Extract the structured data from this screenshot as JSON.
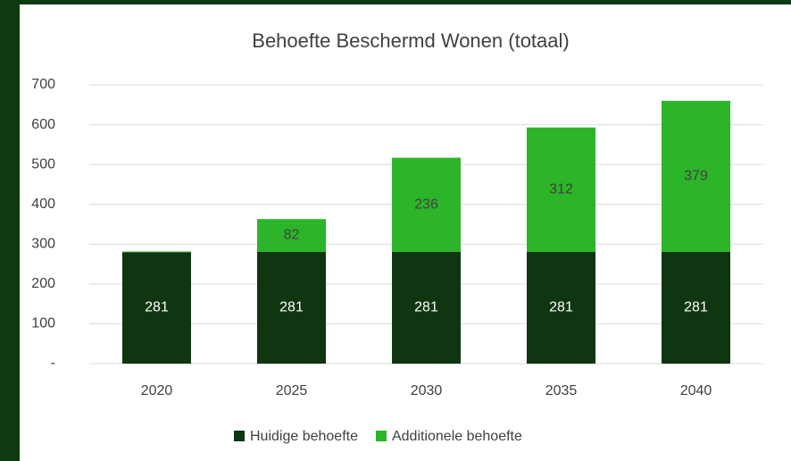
{
  "chart_data": {
    "type": "stacked-bar",
    "title": "Behoefte Beschermd Wonen (totaal)",
    "categories": [
      "2020",
      "2025",
      "2030",
      "2035",
      "2040"
    ],
    "series": [
      {
        "name": "Huidige behoefte",
        "color": "#0f3610",
        "values": [
          281,
          281,
          281,
          281,
          281
        ]
      },
      {
        "name": "Additionele behoefte",
        "color": "#2db52a",
        "values": [
          0,
          82,
          236,
          312,
          379
        ]
      }
    ],
    "ylim": [
      0,
      700
    ],
    "yticks": [
      {
        "value": 0,
        "label": "-"
      },
      100,
      200,
      300,
      400,
      500,
      600,
      700
    ],
    "grid": true,
    "legend": "bottom"
  }
}
